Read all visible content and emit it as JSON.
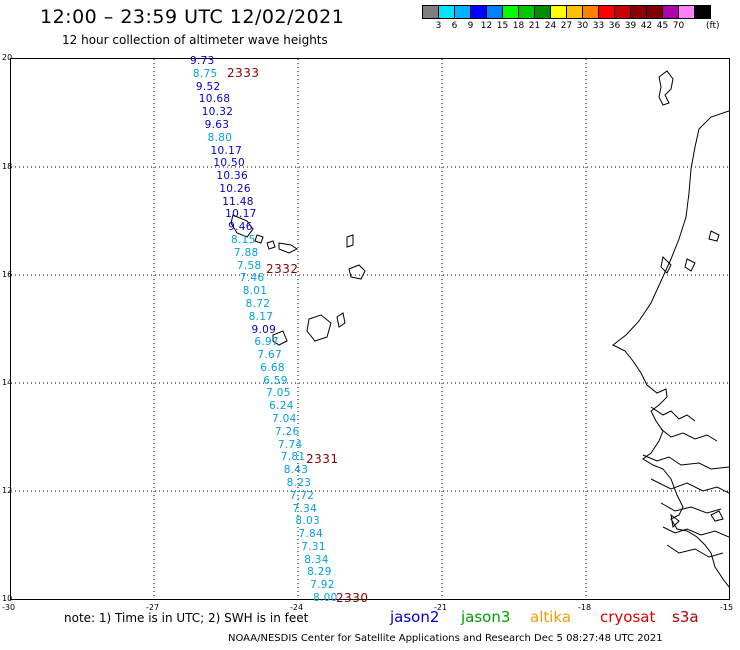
{
  "header": {
    "title": "12:00 – 23:59 UTC 12/02/2021",
    "subtitle": "12 hour collection of altimeter wave heights"
  },
  "colorbar": {
    "colors": [
      "#7f7f7f",
      "#00e5ff",
      "#00b2ff",
      "#0000ff",
      "#0080ff",
      "#00ff00",
      "#00c800",
      "#008c00",
      "#ffff00",
      "#ffc000",
      "#ff8000",
      "#ff0000",
      "#c80000",
      "#8b0000",
      "#7f0000",
      "#b000b0",
      "#ff80ff",
      "#000000"
    ],
    "labels": [
      "3",
      "6",
      "9",
      "12",
      "15",
      "18",
      "21",
      "24",
      "27",
      "30",
      "33",
      "36",
      "39",
      "42",
      "45",
      "70"
    ],
    "unit": "(ft)"
  },
  "axes": {
    "lat_labels": [
      "20",
      "18",
      "16",
      "14",
      "12",
      "10"
    ],
    "lon_labels": [
      "-30",
      "-27",
      "-24",
      "-21",
      "-18",
      "-15"
    ],
    "lat_range": [
      10,
      20
    ],
    "lon_range": [
      -30,
      -15
    ]
  },
  "track": {
    "values": [
      "9.73",
      "8.75",
      "9.52",
      "10.68",
      "10.32",
      "9.63",
      "8.80",
      "10.17",
      "10.50",
      "10.36",
      "10.26",
      "11.48",
      "10.17",
      "9.46",
      "8.15",
      "7.88",
      "7.58",
      "7.46",
      "8.01",
      "8.72",
      "8.17",
      "9.09",
      "6.97",
      "7.67",
      "6.68",
      "6.59",
      "7.05",
      "6.24",
      "7.04",
      "7.26",
      "7.74",
      "7.81",
      "8.43",
      "8.23",
      "7.72",
      "7.34",
      "8.03",
      "7.84",
      "7.31",
      "8.34",
      "8.29",
      "7.92",
      "8.00"
    ],
    "colors": [
      "#0000cc",
      "#00a0e0",
      "#0000cc",
      "#0000cc",
      "#0000cc",
      "#0000cc",
      "#00a0e0",
      "#0000cc",
      "#0000cc",
      "#0000cc",
      "#0000cc",
      "#0000cc",
      "#0000cc",
      "#0000cc",
      "#00a0e0",
      "#00a0e0",
      "#00a0e0",
      "#00a0e0",
      "#00a0e0",
      "#00a0e0",
      "#00a0e0",
      "#0000cc",
      "#00a0e0",
      "#00a0e0",
      "#00a0e0",
      "#00a0e0",
      "#00a0e0",
      "#00a0e0",
      "#00a0e0",
      "#00a0e0",
      "#00a0e0",
      "#00a0e0",
      "#00a0e0",
      "#00a0e0",
      "#00a0e0",
      "#00a0e0",
      "#00a0e0",
      "#00a0e0",
      "#00a0e0",
      "#00a0e0",
      "#00a0e0",
      "#00a0e0",
      "#00a0e0"
    ],
    "time_labels": [
      "2333",
      "2332",
      "2331",
      "2330"
    ]
  },
  "note": "note:  1) Time is in UTC;  2) SWH is in feet",
  "legend": {
    "jason2": "jason2",
    "jason2_color": "#0000cc",
    "jason3": "jason3",
    "jason3_color": "#00a000",
    "altika": "altika",
    "altika_color": "#ff9900",
    "cryosat": "cryosat",
    "cryosat_color": "#e00000",
    "s3a": "s3a",
    "s3a_color": "#b00000"
  },
  "footer": "NOAA/NESDIS Center for Satellite Applications and Research    Dec  5 08:27:48 UTC 2021"
}
